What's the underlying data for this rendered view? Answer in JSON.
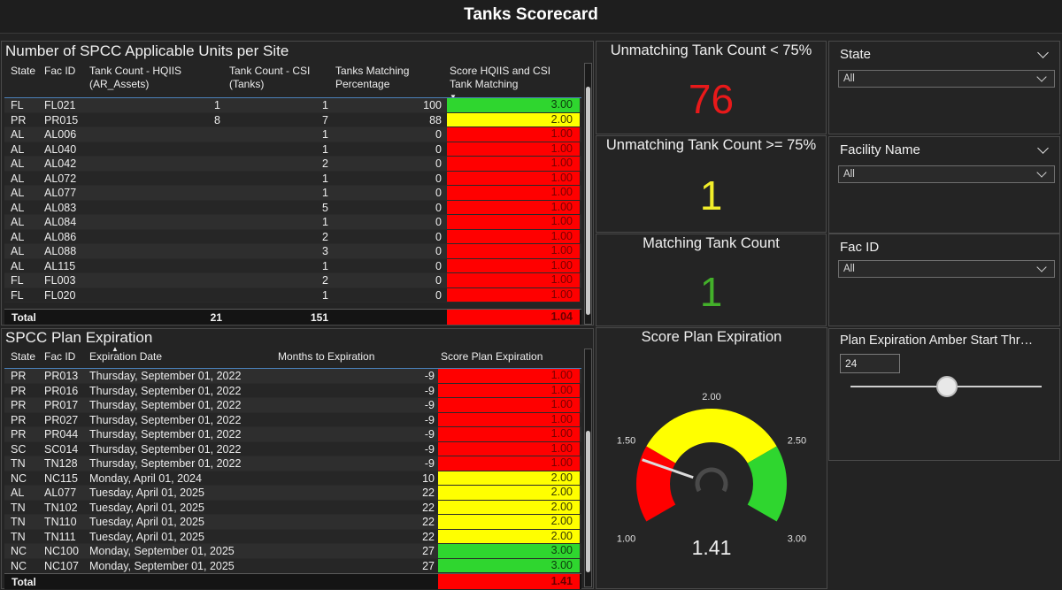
{
  "title": "Tanks Scorecard",
  "colors": {
    "green": "#2fd62f",
    "yellow": "#ffff00",
    "red": "#ff0000",
    "kpi_red": "#e8191a",
    "kpi_yellow": "#f2ee2a",
    "kpi_green": "#43b02a"
  },
  "units_table": {
    "title": "Number of SPCC Applicable Units per Site",
    "headers": {
      "state": "State",
      "fac_id": "Fac ID",
      "hq_line1": "Tank Count - HQIIS",
      "hq_line2": "(AR_Assets)",
      "csi_line1": "Tank Count - CSI",
      "csi_line2": "(Tanks)",
      "pct_line1": "Tanks Matching",
      "pct_line2": "Percentage",
      "score_line1": "Score HQIIS and CSI",
      "score_line2": "Tank Matching",
      "sort_glyph": "▼"
    },
    "rows": [
      {
        "state": "FL",
        "fac_id": "FL021",
        "hq": "1",
        "csi": "1",
        "pct": "100",
        "score": "3.00",
        "level": "green"
      },
      {
        "state": "PR",
        "fac_id": "PR015",
        "hq": "8",
        "csi": "7",
        "pct": "88",
        "score": "2.00",
        "level": "yellow"
      },
      {
        "state": "AL",
        "fac_id": "AL006",
        "hq": "",
        "csi": "1",
        "pct": "0",
        "score": "1.00",
        "level": "red"
      },
      {
        "state": "AL",
        "fac_id": "AL040",
        "hq": "",
        "csi": "1",
        "pct": "0",
        "score": "1.00",
        "level": "red"
      },
      {
        "state": "AL",
        "fac_id": "AL042",
        "hq": "",
        "csi": "2",
        "pct": "0",
        "score": "1.00",
        "level": "red"
      },
      {
        "state": "AL",
        "fac_id": "AL072",
        "hq": "",
        "csi": "1",
        "pct": "0",
        "score": "1.00",
        "level": "red"
      },
      {
        "state": "AL",
        "fac_id": "AL077",
        "hq": "",
        "csi": "1",
        "pct": "0",
        "score": "1.00",
        "level": "red"
      },
      {
        "state": "AL",
        "fac_id": "AL083",
        "hq": "",
        "csi": "5",
        "pct": "0",
        "score": "1.00",
        "level": "red"
      },
      {
        "state": "AL",
        "fac_id": "AL084",
        "hq": "",
        "csi": "1",
        "pct": "0",
        "score": "1.00",
        "level": "red"
      },
      {
        "state": "AL",
        "fac_id": "AL086",
        "hq": "",
        "csi": "2",
        "pct": "0",
        "score": "1.00",
        "level": "red"
      },
      {
        "state": "AL",
        "fac_id": "AL088",
        "hq": "",
        "csi": "3",
        "pct": "0",
        "score": "1.00",
        "level": "red"
      },
      {
        "state": "AL",
        "fac_id": "AL115",
        "hq": "",
        "csi": "1",
        "pct": "0",
        "score": "1.00",
        "level": "red"
      },
      {
        "state": "FL",
        "fac_id": "FL003",
        "hq": "",
        "csi": "2",
        "pct": "0",
        "score": "1.00",
        "level": "red"
      },
      {
        "state": "FL",
        "fac_id": "FL020",
        "hq": "",
        "csi": "1",
        "pct": "0",
        "score": "1.00",
        "level": "red"
      }
    ],
    "total": {
      "label": "Total",
      "hq": "21",
      "csi": "151",
      "score": "1.04"
    }
  },
  "expiration_table": {
    "title": "SPCC Plan Expiration",
    "headers": {
      "state": "State",
      "fac_id": "Fac ID",
      "date": "Expiration Date",
      "months": "Months to Expiration",
      "score": "Score Plan Expiration",
      "sort_glyph": "▲"
    },
    "rows": [
      {
        "state": "PR",
        "fac_id": "PR013",
        "date": "Thursday, September 01, 2022",
        "months": "-9",
        "score": "1.00",
        "level": "red"
      },
      {
        "state": "PR",
        "fac_id": "PR016",
        "date": "Thursday, September 01, 2022",
        "months": "-9",
        "score": "1.00",
        "level": "red"
      },
      {
        "state": "PR",
        "fac_id": "PR017",
        "date": "Thursday, September 01, 2022",
        "months": "-9",
        "score": "1.00",
        "level": "red"
      },
      {
        "state": "PR",
        "fac_id": "PR027",
        "date": "Thursday, September 01, 2022",
        "months": "-9",
        "score": "1.00",
        "level": "red"
      },
      {
        "state": "PR",
        "fac_id": "PR044",
        "date": "Thursday, September 01, 2022",
        "months": "-9",
        "score": "1.00",
        "level": "red"
      },
      {
        "state": "SC",
        "fac_id": "SC014",
        "date": "Thursday, September 01, 2022",
        "months": "-9",
        "score": "1.00",
        "level": "red"
      },
      {
        "state": "TN",
        "fac_id": "TN128",
        "date": "Thursday, September 01, 2022",
        "months": "-9",
        "score": "1.00",
        "level": "red"
      },
      {
        "state": "NC",
        "fac_id": "NC115",
        "date": "Monday, April 01, 2024",
        "months": "10",
        "score": "2.00",
        "level": "yellow"
      },
      {
        "state": "AL",
        "fac_id": "AL077",
        "date": "Tuesday, April 01, 2025",
        "months": "22",
        "score": "2.00",
        "level": "yellow"
      },
      {
        "state": "TN",
        "fac_id": "TN102",
        "date": "Tuesday, April 01, 2025",
        "months": "22",
        "score": "2.00",
        "level": "yellow"
      },
      {
        "state": "TN",
        "fac_id": "TN110",
        "date": "Tuesday, April 01, 2025",
        "months": "22",
        "score": "2.00",
        "level": "yellow"
      },
      {
        "state": "TN",
        "fac_id": "TN111",
        "date": "Tuesday, April 01, 2025",
        "months": "22",
        "score": "2.00",
        "level": "yellow"
      },
      {
        "state": "NC",
        "fac_id": "NC100",
        "date": "Monday, September 01, 2025",
        "months": "27",
        "score": "3.00",
        "level": "green"
      },
      {
        "state": "NC",
        "fac_id": "NC107",
        "date": "Monday, September 01, 2025",
        "months": "27",
        "score": "3.00",
        "level": "green"
      }
    ],
    "total": {
      "label": "Total",
      "score": "1.41"
    }
  },
  "kpis": {
    "unmatching_lt75": {
      "title": "Unmatching Tank Count < 75%",
      "value": "76"
    },
    "unmatching_ge75": {
      "title": "Unmatching Tank Count >= 75%",
      "value": "1"
    },
    "matching": {
      "title": "Matching Tank Count",
      "value": "1"
    }
  },
  "gauge": {
    "title": "Score Plan Expiration",
    "min": 1.0,
    "max": 3.0,
    "value": 1.41,
    "value_label": "1.41",
    "ticks": [
      {
        "value": 1.0,
        "label": "1.00"
      },
      {
        "value": 1.5,
        "label": "1.50"
      },
      {
        "value": 2.0,
        "label": "2.00"
      },
      {
        "value": 2.5,
        "label": "2.50"
      },
      {
        "value": 3.0,
        "label": "3.00"
      }
    ],
    "bands": [
      {
        "from": 1.0,
        "to": 1.5,
        "color": "#ff0000"
      },
      {
        "from": 1.5,
        "to": 2.5,
        "color": "#ffff00"
      },
      {
        "from": 2.5,
        "to": 3.0,
        "color": "#2fd62f"
      }
    ]
  },
  "slicers": {
    "state": {
      "title": "State",
      "value": "All"
    },
    "facility_name": {
      "title": "Facility Name",
      "value": "All"
    },
    "fac_id": {
      "title": "Fac ID",
      "value": "All"
    },
    "threshold": {
      "title": "Plan Expiration Amber Start Thr…",
      "value": "24"
    }
  }
}
